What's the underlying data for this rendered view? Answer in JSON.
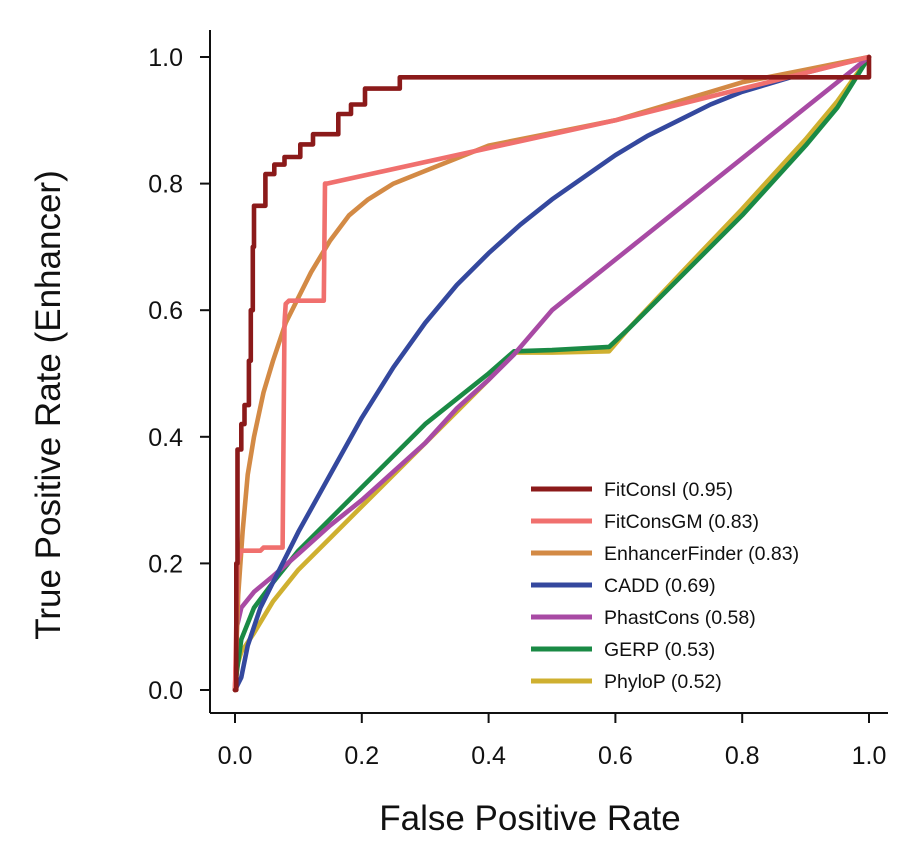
{
  "chart_data": {
    "type": "line",
    "title": "",
    "xlabel": "False Positive Rate",
    "ylabel": "True Positive Rate (Enhancer)",
    "xlim": [
      0,
      1
    ],
    "ylim": [
      0,
      1
    ],
    "xticks": [
      "0.0",
      "0.2",
      "0.4",
      "0.6",
      "0.8",
      "1.0"
    ],
    "yticks": [
      "0.0",
      "0.2",
      "0.4",
      "0.6",
      "0.8",
      "1.0"
    ],
    "grid": false,
    "legend_position": "bottom-right",
    "series": [
      {
        "name": "FitConsI (0.95)",
        "color": "#8b1a1a",
        "step": true,
        "points": [
          [
            0,
            0
          ],
          [
            0.002,
            0.2
          ],
          [
            0.004,
            0.38
          ],
          [
            0.01,
            0.42
          ],
          [
            0.015,
            0.45
          ],
          [
            0.022,
            0.52
          ],
          [
            0.025,
            0.6
          ],
          [
            0.028,
            0.7
          ],
          [
            0.03,
            0.765
          ],
          [
            0.046,
            0.765
          ],
          [
            0.048,
            0.815
          ],
          [
            0.06,
            0.815
          ],
          [
            0.062,
            0.83
          ],
          [
            0.075,
            0.83
          ],
          [
            0.078,
            0.842
          ],
          [
            0.1,
            0.842
          ],
          [
            0.103,
            0.862
          ],
          [
            0.12,
            0.862
          ],
          [
            0.123,
            0.878
          ],
          [
            0.16,
            0.878
          ],
          [
            0.163,
            0.91
          ],
          [
            0.18,
            0.91
          ],
          [
            0.183,
            0.925
          ],
          [
            0.2,
            0.925
          ],
          [
            0.205,
            0.95
          ],
          [
            0.26,
            0.968
          ],
          [
            1,
            1
          ]
        ]
      },
      {
        "name": "FitConsGM (0.83)",
        "color": "#f0706e",
        "step": false,
        "points": [
          [
            0,
            0
          ],
          [
            0.004,
            0.2
          ],
          [
            0.01,
            0.22
          ],
          [
            0.04,
            0.22
          ],
          [
            0.045,
            0.225
          ],
          [
            0.075,
            0.225
          ],
          [
            0.078,
            0.58
          ],
          [
            0.08,
            0.61
          ],
          [
            0.085,
            0.615
          ],
          [
            0.14,
            0.615
          ],
          [
            0.142,
            0.8
          ],
          [
            0.145,
            0.8
          ],
          [
            0.6,
            0.9
          ],
          [
            1,
            1
          ]
        ]
      },
      {
        "name": "EnhancerFinder (0.83)",
        "color": "#d38a45",
        "step": false,
        "points": [
          [
            0,
            0
          ],
          [
            0.005,
            0.15
          ],
          [
            0.012,
            0.25
          ],
          [
            0.02,
            0.34
          ],
          [
            0.03,
            0.4
          ],
          [
            0.045,
            0.47
          ],
          [
            0.06,
            0.52
          ],
          [
            0.08,
            0.58
          ],
          [
            0.1,
            0.62
          ],
          [
            0.12,
            0.66
          ],
          [
            0.15,
            0.71
          ],
          [
            0.18,
            0.75
          ],
          [
            0.21,
            0.775
          ],
          [
            0.25,
            0.8
          ],
          [
            0.3,
            0.82
          ],
          [
            0.35,
            0.84
          ],
          [
            0.4,
            0.86
          ],
          [
            0.5,
            0.88
          ],
          [
            0.6,
            0.9
          ],
          [
            0.7,
            0.93
          ],
          [
            0.8,
            0.96
          ],
          [
            0.9,
            0.98
          ],
          [
            1,
            1
          ]
        ]
      },
      {
        "name": "CADD (0.69)",
        "color": "#34489e",
        "step": false,
        "points": [
          [
            0,
            0
          ],
          [
            0.01,
            0.02
          ],
          [
            0.02,
            0.07
          ],
          [
            0.04,
            0.13
          ],
          [
            0.06,
            0.17
          ],
          [
            0.08,
            0.21
          ],
          [
            0.1,
            0.25
          ],
          [
            0.15,
            0.34
          ],
          [
            0.2,
            0.43
          ],
          [
            0.25,
            0.51
          ],
          [
            0.3,
            0.58
          ],
          [
            0.35,
            0.64
          ],
          [
            0.4,
            0.69
          ],
          [
            0.45,
            0.735
          ],
          [
            0.5,
            0.775
          ],
          [
            0.55,
            0.81
          ],
          [
            0.6,
            0.845
          ],
          [
            0.65,
            0.875
          ],
          [
            0.7,
            0.9
          ],
          [
            0.75,
            0.925
          ],
          [
            0.8,
            0.945
          ],
          [
            0.85,
            0.96
          ],
          [
            0.9,
            0.975
          ],
          [
            0.95,
            0.988
          ],
          [
            1,
            1
          ]
        ]
      },
      {
        "name": "PhastCons (0.58)",
        "color": "#a84aa4",
        "step": false,
        "points": [
          [
            0,
            0
          ],
          [
            0.003,
            0.1
          ],
          [
            0.01,
            0.13
          ],
          [
            0.03,
            0.155
          ],
          [
            0.06,
            0.18
          ],
          [
            0.1,
            0.215
          ],
          [
            0.15,
            0.26
          ],
          [
            0.2,
            0.3
          ],
          [
            0.25,
            0.345
          ],
          [
            0.3,
            0.39
          ],
          [
            0.35,
            0.445
          ],
          [
            0.4,
            0.49
          ],
          [
            0.44,
            0.53
          ],
          [
            0.5,
            0.6
          ],
          [
            0.6,
            0.68
          ],
          [
            0.7,
            0.76
          ],
          [
            0.8,
            0.84
          ],
          [
            0.9,
            0.92
          ],
          [
            1,
            1
          ]
        ]
      },
      {
        "name": "GERP (0.53)",
        "color": "#1a8a45",
        "step": false,
        "points": [
          [
            0,
            0
          ],
          [
            0.003,
            0.03
          ],
          [
            0.01,
            0.08
          ],
          [
            0.03,
            0.13
          ],
          [
            0.06,
            0.17
          ],
          [
            0.1,
            0.22
          ],
          [
            0.15,
            0.27
          ],
          [
            0.2,
            0.32
          ],
          [
            0.25,
            0.37
          ],
          [
            0.3,
            0.42
          ],
          [
            0.35,
            0.46
          ],
          [
            0.4,
            0.5
          ],
          [
            0.44,
            0.535
          ],
          [
            0.5,
            0.537
          ],
          [
            0.59,
            0.542
          ],
          [
            0.62,
            0.57
          ],
          [
            0.7,
            0.65
          ],
          [
            0.8,
            0.75
          ],
          [
            0.9,
            0.86
          ],
          [
            0.95,
            0.92
          ],
          [
            1,
            1
          ]
        ]
      },
      {
        "name": "PhyloP (0.52)",
        "color": "#cfb030",
        "step": false,
        "points": [
          [
            0,
            0
          ],
          [
            0.004,
            0.04
          ],
          [
            0.01,
            0.06
          ],
          [
            0.03,
            0.09
          ],
          [
            0.06,
            0.14
          ],
          [
            0.1,
            0.19
          ],
          [
            0.15,
            0.24
          ],
          [
            0.2,
            0.29
          ],
          [
            0.25,
            0.34
          ],
          [
            0.3,
            0.39
          ],
          [
            0.35,
            0.44
          ],
          [
            0.4,
            0.49
          ],
          [
            0.44,
            0.533
          ],
          [
            0.5,
            0.533
          ],
          [
            0.59,
            0.535
          ],
          [
            0.62,
            0.57
          ],
          [
            0.7,
            0.655
          ],
          [
            0.8,
            0.76
          ],
          [
            0.9,
            0.87
          ],
          [
            0.95,
            0.93
          ],
          [
            1,
            1
          ]
        ]
      }
    ]
  }
}
